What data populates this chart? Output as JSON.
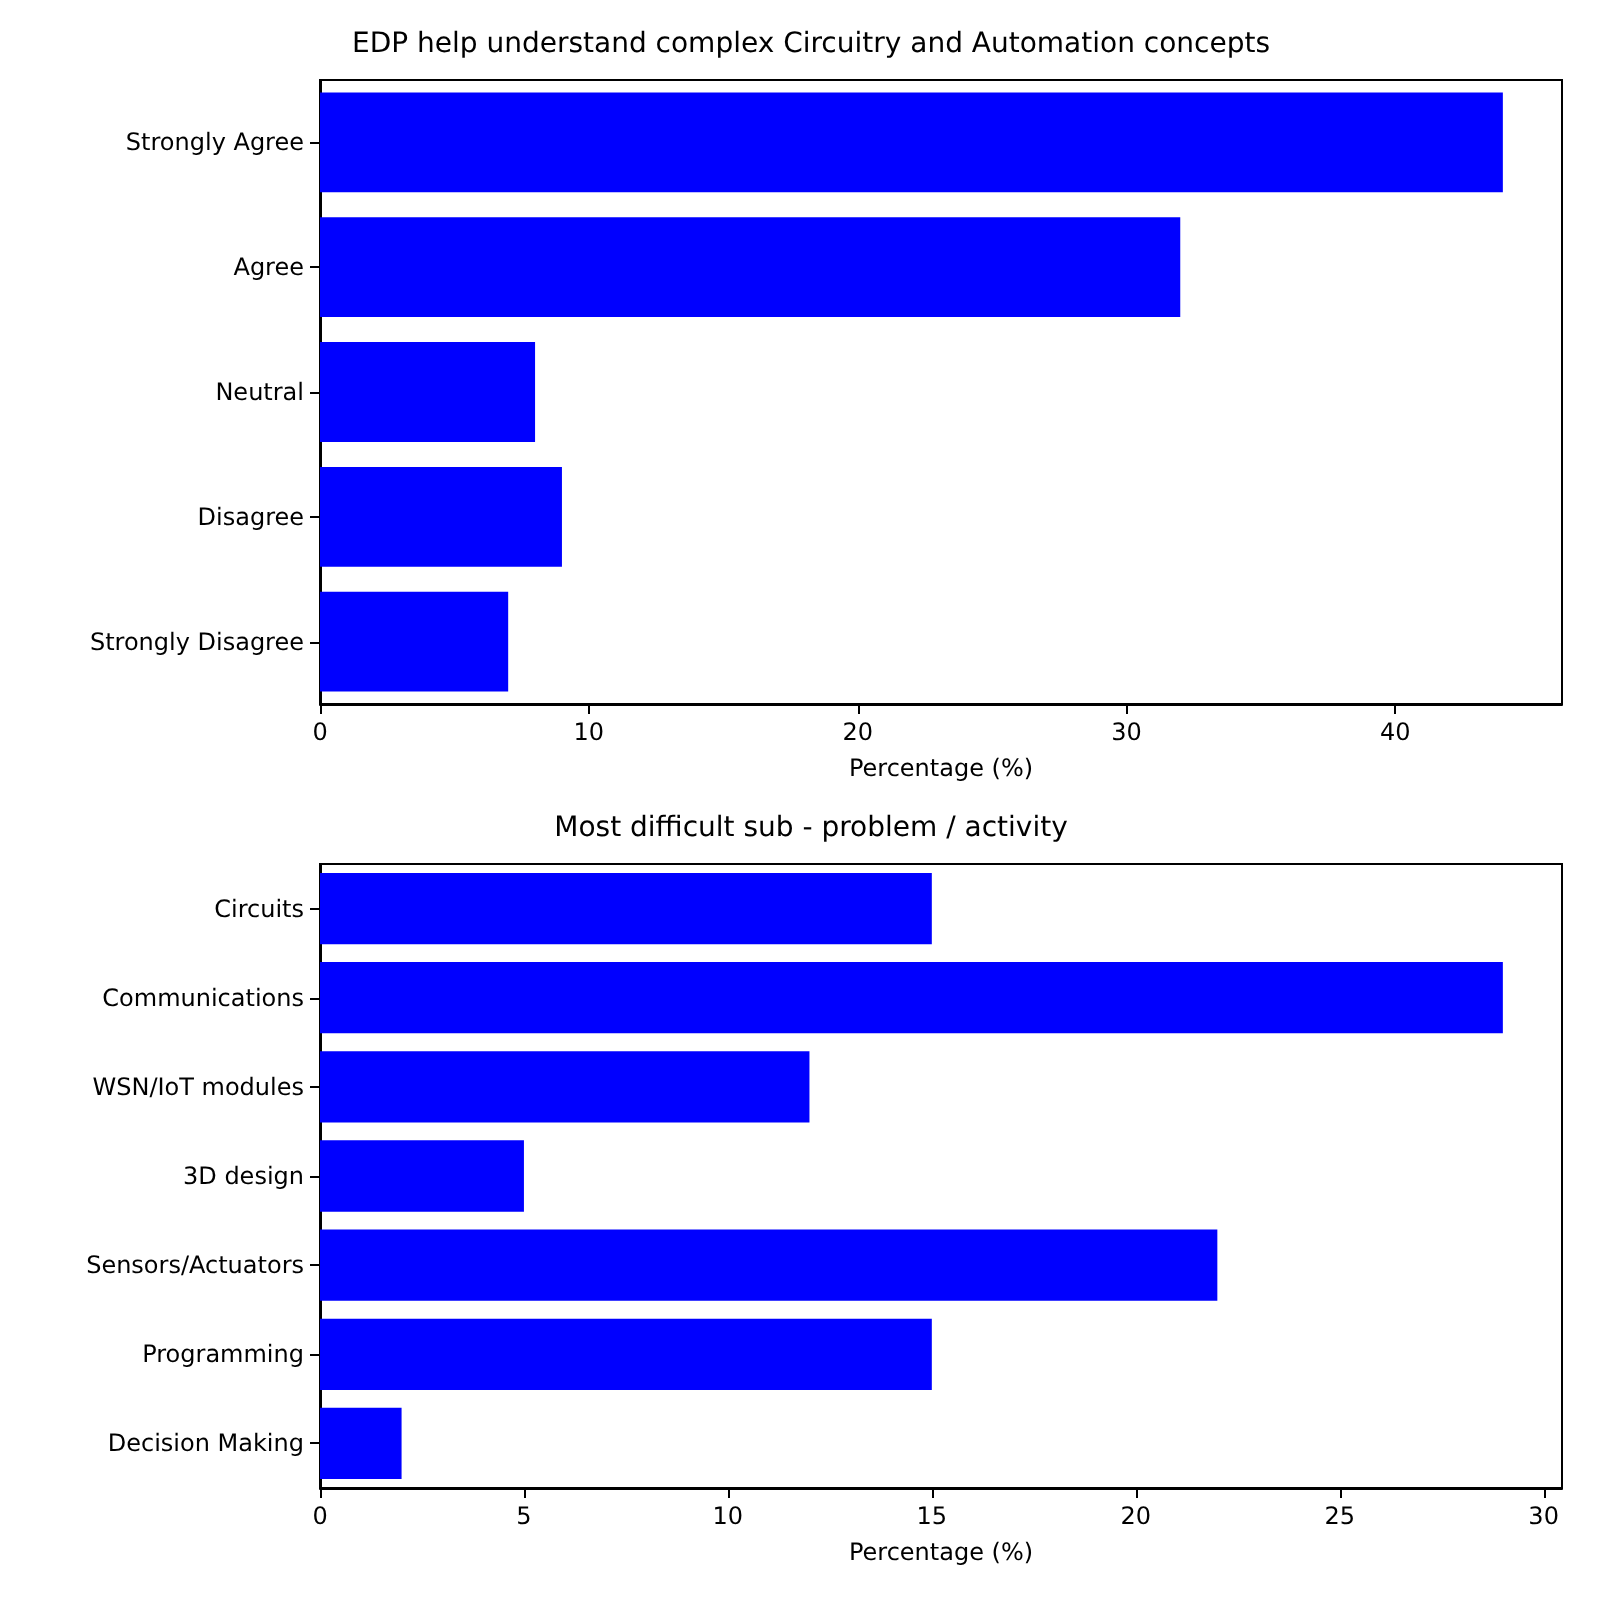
{
  "chart_data": [
    {
      "type": "bar",
      "orientation": "horizontal",
      "title": "EDP help understand complex Circuitry and Automation concepts",
      "xlabel": "Percentage (%)",
      "categories": [
        "Strongly Agree",
        "Agree",
        "Neutral",
        "Disagree",
        "Strongly Disagree"
      ],
      "values": [
        44,
        32,
        8,
        9,
        7
      ],
      "color": "#0000ff",
      "xlim": [
        0,
        46.2
      ],
      "xticks": [
        0,
        10,
        20,
        30,
        40
      ],
      "grid": false
    },
    {
      "type": "bar",
      "orientation": "horizontal",
      "title": "Most difficult sub - problem / activity",
      "xlabel": "Percentage (%)",
      "categories": [
        "Circuits",
        "Communications",
        "WSN/IoT modules",
        "3D design",
        "Sensors/Actuators",
        "Programming",
        "Decision Making"
      ],
      "values": [
        15,
        29,
        12,
        5,
        22,
        15,
        2
      ],
      "color": "#0000ff",
      "xlim": [
        0,
        30.45
      ],
      "xticks": [
        0,
        5,
        10,
        15,
        20,
        25,
        30
      ],
      "grid": false
    }
  ]
}
